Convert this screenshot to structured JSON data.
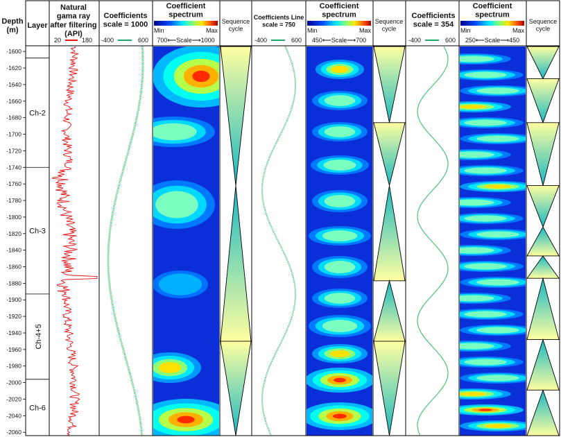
{
  "headers": {
    "depth": "Depth\n(m)",
    "layer": "Layer",
    "gamma": "Natural\ngama ray\nafter filtering\n(API)",
    "gamma_min": "20",
    "gamma_max": "180",
    "coef1": "Coefficients\nscale = 1000",
    "coef1_min": "-400",
    "coef1_max": "600",
    "spec1": "Coefficient\nspectrum",
    "spec1_scale": "700⟵Scale⟶1000",
    "seq": "Sequence\ncycle",
    "coef2": "Coefficients Line\nscale = 750",
    "coef2_min": "-400",
    "coef2_max": "600",
    "spec2": "Coefficient\nspectrum",
    "spec2_scale": "450⟵Scale⟶700",
    "coef3": "Coefficients\nscale = 354",
    "coef3_min": "-400",
    "coef3_max": "600",
    "spec3": "Coefficient\nspectrum",
    "spec3_scale": "250⟵Scale⟶450",
    "colorbar_min": "Min",
    "colorbar_max": "Max"
  },
  "depth_axis": {
    "min": 1594,
    "max": 2064,
    "ticks": [
      1600,
      1620,
      1640,
      1660,
      1680,
      1700,
      1720,
      1740,
      1760,
      1780,
      1800,
      1820,
      1840,
      1860,
      1880,
      1900,
      1920,
      1940,
      1960,
      1980,
      2000,
      2020,
      2040,
      2060
    ]
  },
  "layers": [
    {
      "name": "Ch-2",
      "top": 1608,
      "bottom": 1740
    },
    {
      "name": "Ch-3",
      "top": 1740,
      "bottom": 1893
    },
    {
      "name": "Ch-4+5",
      "top": 1893,
      "bottom": 1996
    },
    {
      "name": "Ch-6",
      "top": 1996,
      "bottom": 2064
    }
  ],
  "cycles": {
    "seq1": [
      {
        "top": 1594,
        "bottom": 1762,
        "dir": "down"
      },
      {
        "top": 1762,
        "bottom": 1950,
        "dir": "up"
      },
      {
        "top": 1950,
        "bottom": 2064,
        "dir": "down"
      }
    ],
    "seq2": [
      {
        "top": 1594,
        "bottom": 1686,
        "dir": "down"
      },
      {
        "top": 1686,
        "bottom": 1762,
        "dir": "down"
      },
      {
        "top": 1762,
        "bottom": 1877,
        "dir": "up"
      },
      {
        "top": 1877,
        "bottom": 1950,
        "dir": "up"
      },
      {
        "top": 1950,
        "bottom": 2064,
        "dir": "down"
      }
    ],
    "seq3": [
      {
        "top": 1594,
        "bottom": 1633,
        "dir": "down"
      },
      {
        "top": 1633,
        "bottom": 1686,
        "dir": "down"
      },
      {
        "top": 1686,
        "bottom": 1762,
        "dir": "down"
      },
      {
        "top": 1762,
        "bottom": 1812,
        "dir": "down"
      },
      {
        "top": 1812,
        "bottom": 1847,
        "dir": "up"
      },
      {
        "top": 1847,
        "bottom": 1874,
        "dir": "up"
      },
      {
        "top": 1874,
        "bottom": 1948,
        "dir": "up"
      },
      {
        "top": 1948,
        "bottom": 2009,
        "dir": "up"
      },
      {
        "top": 2009,
        "bottom": 2064,
        "dir": "up"
      }
    ]
  }
}
